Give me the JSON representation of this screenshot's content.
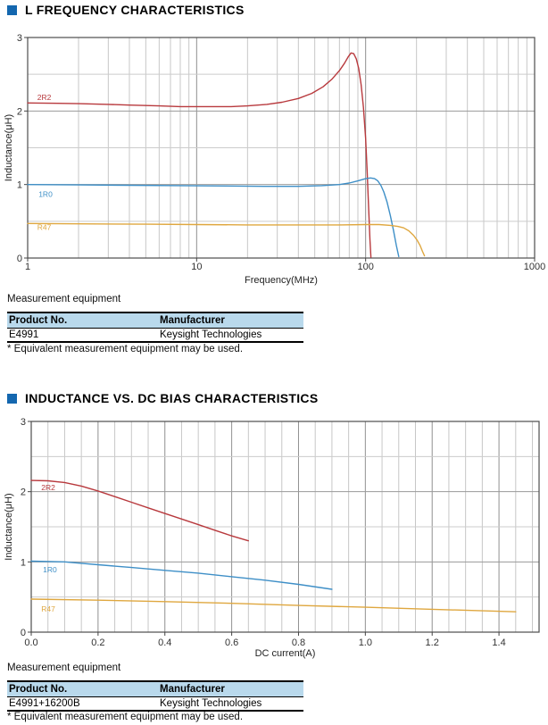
{
  "sections": [
    {
      "title": "L FREQUENCY CHARACTERISTICS",
      "equipment_label": "Measurement equipment",
      "table": {
        "headers": [
          "Product No.",
          "Manufacturer"
        ],
        "rows": [
          [
            "E4991",
            "Keysight Technologies"
          ]
        ],
        "footnote": "* Equivalent measurement equipment may be used."
      }
    },
    {
      "title": "INDUCTANCE VS. DC BIAS CHARACTERISTICS",
      "equipment_label": "Measurement equipment",
      "table": {
        "headers": [
          "Product No.",
          "Manufacturer"
        ],
        "rows": [
          [
            "E4991+16200B",
            "Keysight Technologies"
          ]
        ],
        "footnote": "* Equivalent measurement equipment may be used."
      }
    }
  ],
  "colors": {
    "accent_blue_square": "#1467af",
    "table_header_bg": "#b9d9ec",
    "series_2R2": "#b8393d",
    "series_1R0": "#3e8fc7",
    "series_R47": "#dfa73f",
    "grid_minor": "#c7c7c7",
    "grid_major": "#909090",
    "plot_border": "#4d4d4d"
  },
  "chart_data": [
    {
      "type": "line",
      "title": "L FREQUENCY CHARACTERISTICS",
      "xlabel": "Frequency(MHz)",
      "ylabel": "Inductance(μH)",
      "x_scale": "log",
      "xlim": [
        1,
        1000
      ],
      "ylim": [
        0,
        3
      ],
      "x_ticks": [
        1,
        10,
        100,
        1000
      ],
      "x_tick_labels": [
        "1",
        "10",
        "100",
        "1000"
      ],
      "y_ticks": [
        0,
        1,
        2,
        3
      ],
      "y_tick_labels": [
        "0",
        "1",
        "2",
        "3"
      ],
      "y_minor_step": 0.5,
      "grid": true,
      "legend_position": "inline-curve-labels",
      "series": [
        {
          "name": "2R2",
          "color": "#b8393d",
          "label_pos": [
            1.14,
            2.15
          ],
          "points": [
            [
              1,
              2.11
            ],
            [
              1.5,
              2.105
            ],
            [
              2,
              2.1
            ],
            [
              3,
              2.09
            ],
            [
              4,
              2.08
            ],
            [
              6,
              2.07
            ],
            [
              8,
              2.06
            ],
            [
              12,
              2.06
            ],
            [
              16,
              2.06
            ],
            [
              20,
              2.07
            ],
            [
              26,
              2.09
            ],
            [
              32,
              2.12
            ],
            [
              40,
              2.17
            ],
            [
              48,
              2.24
            ],
            [
              56,
              2.33
            ],
            [
              63,
              2.43
            ],
            [
              70,
              2.55
            ],
            [
              75,
              2.65
            ],
            [
              79,
              2.74
            ],
            [
              82,
              2.79
            ],
            [
              85,
              2.78
            ],
            [
              88,
              2.71
            ],
            [
              91,
              2.58
            ],
            [
              94,
              2.36
            ],
            [
              97,
              2.05
            ],
            [
              100,
              1.62
            ],
            [
              102,
              1.2
            ],
            [
              104,
              0.72
            ],
            [
              106,
              0.25
            ],
            [
              107.5,
              0.01
            ]
          ]
        },
        {
          "name": "1R0",
          "color": "#3e8fc7",
          "label_pos": [
            1.16,
            0.83
          ],
          "points": [
            [
              1,
              1.0
            ],
            [
              2,
              0.995
            ],
            [
              4,
              0.99
            ],
            [
              8,
              0.985
            ],
            [
              15,
              0.98
            ],
            [
              25,
              0.975
            ],
            [
              40,
              0.975
            ],
            [
              55,
              0.985
            ],
            [
              70,
              1.0
            ],
            [
              80,
              1.02
            ],
            [
              90,
              1.05
            ],
            [
              100,
              1.08
            ],
            [
              107,
              1.09
            ],
            [
              113,
              1.08
            ],
            [
              118,
              1.05
            ],
            [
              123,
              0.99
            ],
            [
              128,
              0.9
            ],
            [
              134,
              0.76
            ],
            [
              140,
              0.58
            ],
            [
              146,
              0.38
            ],
            [
              152,
              0.17
            ],
            [
              157,
              0.02
            ]
          ]
        },
        {
          "name": "R47",
          "color": "#dfa73f",
          "label_pos": [
            1.14,
            0.38
          ],
          "points": [
            [
              1,
              0.47
            ],
            [
              2,
              0.465
            ],
            [
              5,
              0.46
            ],
            [
              10,
              0.455
            ],
            [
              20,
              0.45
            ],
            [
              40,
              0.45
            ],
            [
              70,
              0.45
            ],
            [
              100,
              0.455
            ],
            [
              120,
              0.455
            ],
            [
              140,
              0.445
            ],
            [
              155,
              0.43
            ],
            [
              168,
              0.41
            ],
            [
              180,
              0.37
            ],
            [
              192,
              0.31
            ],
            [
              202,
              0.24
            ],
            [
              210,
              0.17
            ],
            [
              217,
              0.09
            ],
            [
              223,
              0.03
            ]
          ]
        }
      ]
    },
    {
      "type": "line",
      "title": "INDUCTANCE VS. DC BIAS CHARACTERISTICS",
      "xlabel": "DC current(A)",
      "ylabel": "Inductance(μH)",
      "x_scale": "linear",
      "xlim": [
        0,
        1.52
      ],
      "ylim": [
        0,
        3
      ],
      "x_ticks": [
        0,
        0.2,
        0.4,
        0.6,
        0.8,
        1.0,
        1.2,
        1.4
      ],
      "x_tick_labels": [
        "0.0",
        "0.2",
        "0.4",
        "0.6",
        "0.8",
        "1.0",
        "1.2",
        "1.4"
      ],
      "x_minor_step": 0.05,
      "y_ticks": [
        0,
        1,
        2,
        3
      ],
      "y_tick_labels": [
        "0",
        "1",
        "2",
        "3"
      ],
      "y_minor_step": 0.5,
      "grid": true,
      "legend_position": "inline-curve-labels",
      "series": [
        {
          "name": "2R2",
          "color": "#b8393d",
          "label_pos": [
            0.03,
            2.02
          ],
          "points": [
            [
              0,
              2.16
            ],
            [
              0.05,
              2.155
            ],
            [
              0.1,
              2.13
            ],
            [
              0.15,
              2.08
            ],
            [
              0.2,
              2.01
            ],
            [
              0.25,
              1.93
            ],
            [
              0.3,
              1.85
            ],
            [
              0.35,
              1.77
            ],
            [
              0.4,
              1.69
            ],
            [
              0.45,
              1.61
            ],
            [
              0.5,
              1.53
            ],
            [
              0.55,
              1.45
            ],
            [
              0.6,
              1.37
            ],
            [
              0.65,
              1.3
            ]
          ]
        },
        {
          "name": "1R0",
          "color": "#3e8fc7",
          "label_pos": [
            0.035,
            0.85
          ],
          "points": [
            [
              0,
              1.01
            ],
            [
              0.1,
              1.0
            ],
            [
              0.2,
              0.96
            ],
            [
              0.3,
              0.92
            ],
            [
              0.4,
              0.88
            ],
            [
              0.5,
              0.84
            ],
            [
              0.6,
              0.79
            ],
            [
              0.7,
              0.74
            ],
            [
              0.8,
              0.68
            ],
            [
              0.9,
              0.61
            ]
          ]
        },
        {
          "name": "R47",
          "color": "#dfa73f",
          "label_pos": [
            0.03,
            0.29
          ],
          "points": [
            [
              0,
              0.47
            ],
            [
              0.2,
              0.455
            ],
            [
              0.4,
              0.435
            ],
            [
              0.6,
              0.41
            ],
            [
              0.8,
              0.38
            ],
            [
              1.0,
              0.355
            ],
            [
              1.2,
              0.325
            ],
            [
              1.45,
              0.29
            ]
          ]
        }
      ]
    }
  ]
}
